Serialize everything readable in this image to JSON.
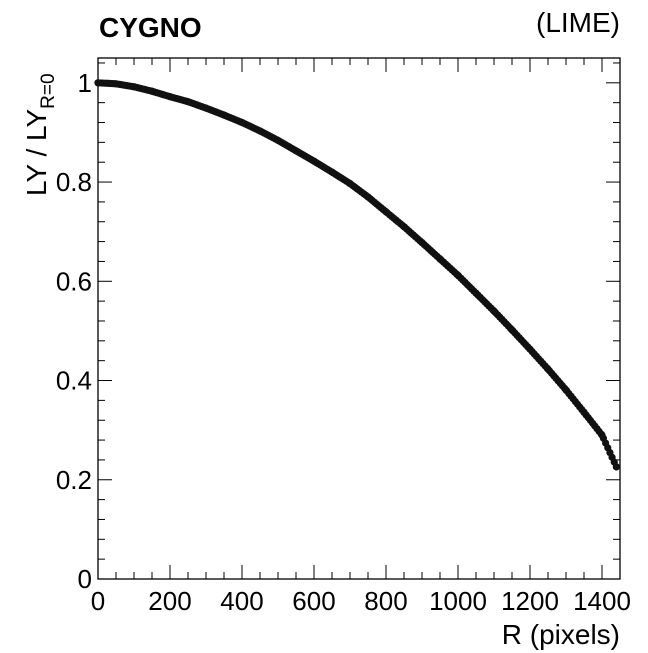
{
  "figure": {
    "title_left": "CYGNO",
    "title_right": "(LIME)"
  },
  "chart_data": {
    "type": "scatter",
    "title": "CYGNO",
    "subtitle": "(LIME)",
    "xlabel": "R (pixels)",
    "ylabel_main": "LY / LY",
    "ylabel_subscript": "R=0",
    "xlim": [
      0,
      1450
    ],
    "ylim": [
      0,
      1.05
    ],
    "x_ticks": [
      0,
      200,
      400,
      600,
      800,
      1000,
      1200,
      1400
    ],
    "x_tick_labels": [
      "0",
      "200",
      "400",
      "600",
      "800",
      "1000",
      "1200",
      "1400"
    ],
    "y_ticks": [
      0,
      0.2,
      0.4,
      0.6,
      0.8,
      1.0
    ],
    "y_tick_labels": [
      "0",
      "0.2",
      "0.4",
      "0.6",
      "0.8",
      "1"
    ],
    "grid": false,
    "legend": "none",
    "marker_color": "#111111",
    "series": [
      {
        "x": [
          0,
          50,
          100,
          150,
          200,
          250,
          300,
          350,
          400,
          450,
          500,
          550,
          600,
          650,
          700,
          750,
          800,
          850,
          900,
          950,
          1000,
          1050,
          1100,
          1150,
          1200,
          1250,
          1300,
          1350,
          1400,
          1440
        ],
        "y": [
          1.0,
          0.998,
          0.992,
          0.983,
          0.972,
          0.962,
          0.949,
          0.935,
          0.92,
          0.903,
          0.884,
          0.863,
          0.842,
          0.82,
          0.797,
          0.77,
          0.74,
          0.71,
          0.678,
          0.645,
          0.612,
          0.576,
          0.54,
          0.502,
          0.463,
          0.423,
          0.381,
          0.336,
          0.29,
          0.226
        ]
      }
    ]
  }
}
